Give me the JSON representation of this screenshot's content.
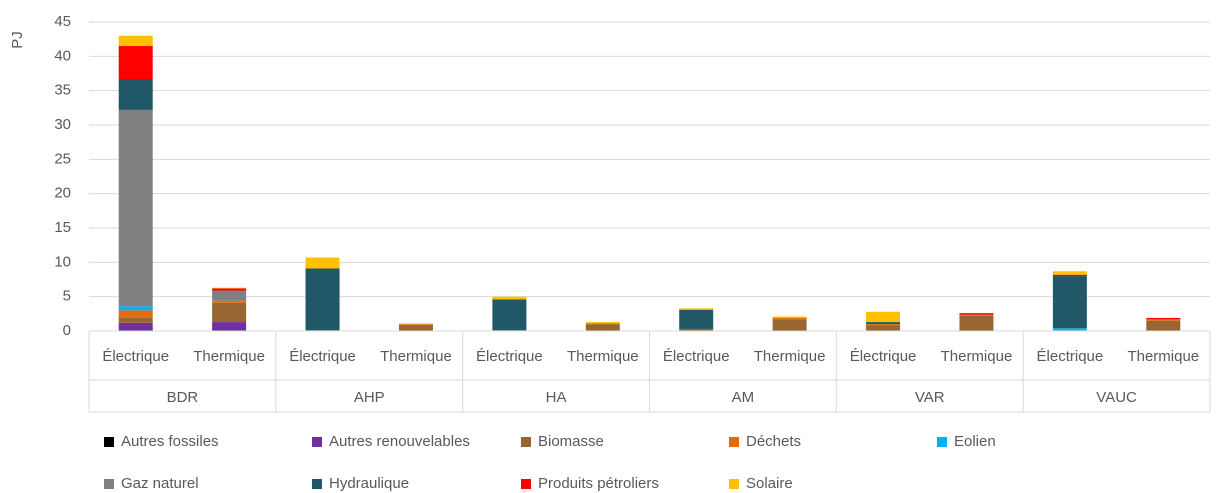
{
  "chart_data": {
    "type": "stacked_bar",
    "y_label": "PJ",
    "categories": [
      "Électrique",
      "Thermique",
      "Électrique",
      "Thermique",
      "Électrique",
      "Thermique",
      "Électrique",
      "Thermique",
      "Électrique",
      "Thermique",
      "Électrique",
      "Thermique"
    ],
    "groups": [
      "BDR",
      "AHP",
      "HA",
      "AM",
      "VAR",
      "VAUC"
    ],
    "series": [
      {
        "name": "Autres fossiles",
        "color": "#000000",
        "values": [
          0,
          0,
          0,
          0,
          0,
          0,
          0,
          0,
          0,
          0,
          0,
          0
        ]
      },
      {
        "name": "Autres renouvelables",
        "color": "#7030a0",
        "values": [
          1.2,
          1.3,
          0,
          0,
          0,
          0,
          0,
          0,
          0,
          0,
          0,
          0
        ]
      },
      {
        "name": "Biomasse",
        "color": "#996633",
        "values": [
          0.8,
          2.8,
          0.1,
          0.9,
          0.1,
          1.0,
          0.3,
          1.7,
          0.8,
          2.2,
          0.1,
          1.5
        ]
      },
      {
        "name": "Déchets",
        "color": "#e36c09",
        "values": [
          1.0,
          0.3,
          0,
          0.1,
          0,
          0.1,
          0,
          0.2,
          0.2,
          0.2,
          0,
          0.2
        ]
      },
      {
        "name": "Eolien",
        "color": "#00b0f0",
        "values": [
          0.6,
          0,
          0,
          0,
          0,
          0,
          0,
          0,
          0,
          0,
          0.3,
          0
        ]
      },
      {
        "name": "Gaz naturel",
        "color": "#808080",
        "values": [
          28.6,
          1.5,
          0,
          0,
          0,
          0,
          0,
          0,
          0,
          0,
          0,
          0
        ]
      },
      {
        "name": "Hydraulique",
        "color": "#215868",
        "values": [
          4.5,
          0,
          9.0,
          0,
          4.5,
          0,
          2.8,
          0,
          0.3,
          0,
          7.6,
          0
        ]
      },
      {
        "name": "Produits pétroliers",
        "color": "#ff0000",
        "values": [
          4.8,
          0.3,
          0,
          0,
          0,
          0,
          0,
          0,
          0,
          0.2,
          0.2,
          0.2
        ]
      },
      {
        "name": "Solaire",
        "color": "#ffc000",
        "values": [
          1.5,
          0.1,
          1.6,
          0.1,
          0.4,
          0.2,
          0.2,
          0.2,
          1.5,
          0,
          0.5,
          0
        ]
      }
    ],
    "ylim": [
      0,
      45
    ],
    "yticks": [
      0,
      5,
      10,
      15,
      20,
      25,
      30,
      35,
      40,
      45
    ],
    "grid": true
  }
}
